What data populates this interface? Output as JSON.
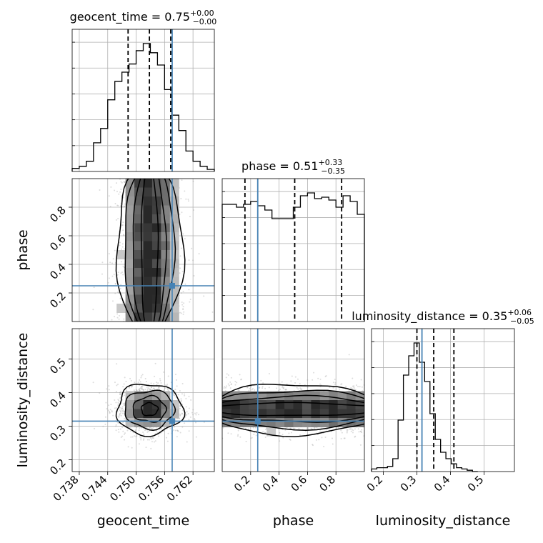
{
  "chart_data": {
    "type": "corner",
    "grid": true,
    "colors": {
      "truth": "#4682b4",
      "hist": "#000000",
      "grid": "#b0b0b0",
      "scatter": "#9a9a9a"
    },
    "parameters": [
      {
        "key": "geocent_time",
        "label": "geocent_time",
        "range": [
          0.7365,
          0.7665
        ],
        "median": 0.7528,
        "q16": 0.7483,
        "q84": 0.7573,
        "truth": 0.7576,
        "ticks": [
          "0.738",
          "0.744",
          "0.750",
          "0.756",
          "0.762"
        ],
        "tick_values": [
          0.738,
          0.744,
          0.75,
          0.756,
          0.762
        ],
        "title": {
          "base": "geocent_time = 0.75",
          "sup": "+0.00",
          "sub": "−0.00"
        }
      },
      {
        "key": "phase",
        "label": "phase",
        "range": [
          0.0,
          1.0
        ],
        "median": 0.51,
        "q16": 0.16,
        "q84": 0.84,
        "truth": 0.25,
        "ticks": [
          "0.2",
          "0.4",
          "0.6",
          "0.8"
        ],
        "tick_values": [
          0.2,
          0.4,
          0.6,
          0.8
        ],
        "title": {
          "base": "phase = 0.51",
          "sup": "+0.33",
          "sub": "−0.35"
        }
      },
      {
        "key": "luminosity_distance",
        "label": "luminosity_distance",
        "range": [
          0.165,
          0.59
        ],
        "median": 0.35,
        "q16": 0.3,
        "q84": 0.41,
        "truth": 0.315,
        "ticks": [
          "0.2",
          "0.3",
          "0.4",
          "0.5"
        ],
        "tick_values": [
          0.2,
          0.3,
          0.4,
          0.5
        ],
        "ticks_y": [
          "0.2",
          "0.3",
          "0.4",
          "0.5"
        ],
        "title": {
          "base": "luminosity_distance = 0.35",
          "sup": "+0.06",
          "sub": "−0.05"
        }
      }
    ],
    "histograms": {
      "geocent_time": {
        "x_start": 0.7365,
        "bin_width": 0.0015,
        "counts": [
          3,
          5,
          10,
          28,
          42,
          70,
          88,
          97,
          105,
          118,
          125,
          116,
          104,
          80,
          55,
          40,
          20,
          10,
          5,
          2
        ]
      },
      "phase": {
        "x_start": 0.0,
        "bin_width": 0.05,
        "counts": [
          82,
          82,
          80,
          82,
          84,
          81,
          78,
          72,
          72,
          72,
          80,
          88,
          90,
          86,
          87,
          85,
          80,
          88,
          84,
          75
        ]
      },
      "luminosity_distance": {
        "x_start": 0.165,
        "bin_width": 0.0158,
        "counts": [
          2,
          3,
          3,
          4,
          10,
          40,
          75,
          90,
          100,
          85,
          70,
          45,
          25,
          15,
          10,
          6,
          3,
          2,
          1,
          0
        ]
      }
    }
  }
}
